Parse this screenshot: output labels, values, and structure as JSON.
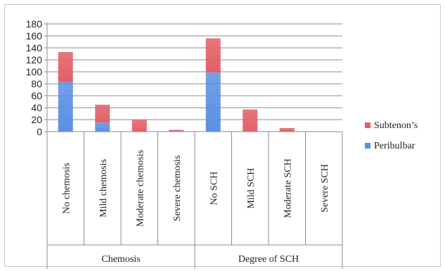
{
  "chart_data": {
    "type": "bar",
    "stacked": true,
    "categories": [
      "No chemosis",
      "Mild chemosis",
      "Moderate chemosis",
      "Severe chemosis",
      "No SCH",
      "Mild SCH",
      "Moderate SCH",
      "Severe SCH"
    ],
    "groups": [
      {
        "label": "Chemosis",
        "categories": [
          "No chemosis",
          "Mild chemosis",
          "Moderate chemosis",
          "Severe chemosis"
        ]
      },
      {
        "label": "Degree of SCH",
        "categories": [
          "No SCH",
          "Mild SCH",
          "Moderate SCH",
          "Severe SCH"
        ]
      }
    ],
    "series": [
      {
        "name": "Peribulbar",
        "color": "#5b8fe3",
        "values": [
          83,
          15,
          0,
          0,
          99,
          0,
          0,
          0
        ]
      },
      {
        "name": "Subtenon’s",
        "color": "#e35f66",
        "values": [
          50,
          30,
          20,
          3,
          57,
          37,
          6,
          0
        ]
      }
    ],
    "ylim": [
      0,
      180
    ],
    "yticks": [
      0,
      20,
      40,
      60,
      80,
      100,
      120,
      140,
      160,
      180
    ],
    "grid": true,
    "legend_position": "right",
    "title": "",
    "xlabel": "",
    "ylabel": ""
  }
}
